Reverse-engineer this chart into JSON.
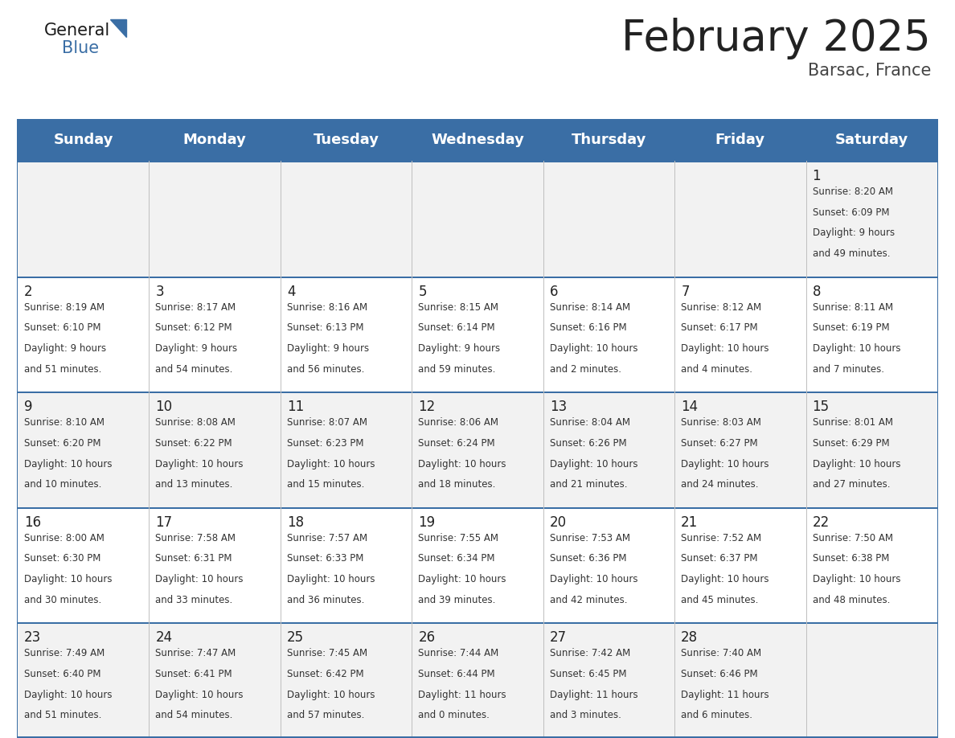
{
  "title": "February 2025",
  "subtitle": "Barsac, France",
  "header_color": "#3a6ea5",
  "header_text_color": "#ffffff",
  "cell_bg_even": "#f2f2f2",
  "cell_bg_odd": "#ffffff",
  "line_color": "#3a6ea5",
  "border_color": "#c0c0c0",
  "days_of_week": [
    "Sunday",
    "Monday",
    "Tuesday",
    "Wednesday",
    "Thursday",
    "Friday",
    "Saturday"
  ],
  "title_fontsize": 38,
  "subtitle_fontsize": 15,
  "header_fontsize": 13,
  "day_num_fontsize": 12,
  "info_fontsize": 8.5,
  "logo_general_fontsize": 15,
  "logo_blue_fontsize": 15,
  "calendar": [
    [
      null,
      null,
      null,
      null,
      null,
      null,
      {
        "day": 1,
        "sunrise": "8:20 AM",
        "sunset": "6:09 PM",
        "daylight_hours": 9,
        "daylight_minutes": 49
      }
    ],
    [
      {
        "day": 2,
        "sunrise": "8:19 AM",
        "sunset": "6:10 PM",
        "daylight_hours": 9,
        "daylight_minutes": 51
      },
      {
        "day": 3,
        "sunrise": "8:17 AM",
        "sunset": "6:12 PM",
        "daylight_hours": 9,
        "daylight_minutes": 54
      },
      {
        "day": 4,
        "sunrise": "8:16 AM",
        "sunset": "6:13 PM",
        "daylight_hours": 9,
        "daylight_minutes": 56
      },
      {
        "day": 5,
        "sunrise": "8:15 AM",
        "sunset": "6:14 PM",
        "daylight_hours": 9,
        "daylight_minutes": 59
      },
      {
        "day": 6,
        "sunrise": "8:14 AM",
        "sunset": "6:16 PM",
        "daylight_hours": 10,
        "daylight_minutes": 2
      },
      {
        "day": 7,
        "sunrise": "8:12 AM",
        "sunset": "6:17 PM",
        "daylight_hours": 10,
        "daylight_minutes": 4
      },
      {
        "day": 8,
        "sunrise": "8:11 AM",
        "sunset": "6:19 PM",
        "daylight_hours": 10,
        "daylight_minutes": 7
      }
    ],
    [
      {
        "day": 9,
        "sunrise": "8:10 AM",
        "sunset": "6:20 PM",
        "daylight_hours": 10,
        "daylight_minutes": 10
      },
      {
        "day": 10,
        "sunrise": "8:08 AM",
        "sunset": "6:22 PM",
        "daylight_hours": 10,
        "daylight_minutes": 13
      },
      {
        "day": 11,
        "sunrise": "8:07 AM",
        "sunset": "6:23 PM",
        "daylight_hours": 10,
        "daylight_minutes": 15
      },
      {
        "day": 12,
        "sunrise": "8:06 AM",
        "sunset": "6:24 PM",
        "daylight_hours": 10,
        "daylight_minutes": 18
      },
      {
        "day": 13,
        "sunrise": "8:04 AM",
        "sunset": "6:26 PM",
        "daylight_hours": 10,
        "daylight_minutes": 21
      },
      {
        "day": 14,
        "sunrise": "8:03 AM",
        "sunset": "6:27 PM",
        "daylight_hours": 10,
        "daylight_minutes": 24
      },
      {
        "day": 15,
        "sunrise": "8:01 AM",
        "sunset": "6:29 PM",
        "daylight_hours": 10,
        "daylight_minutes": 27
      }
    ],
    [
      {
        "day": 16,
        "sunrise": "8:00 AM",
        "sunset": "6:30 PM",
        "daylight_hours": 10,
        "daylight_minutes": 30
      },
      {
        "day": 17,
        "sunrise": "7:58 AM",
        "sunset": "6:31 PM",
        "daylight_hours": 10,
        "daylight_minutes": 33
      },
      {
        "day": 18,
        "sunrise": "7:57 AM",
        "sunset": "6:33 PM",
        "daylight_hours": 10,
        "daylight_minutes": 36
      },
      {
        "day": 19,
        "sunrise": "7:55 AM",
        "sunset": "6:34 PM",
        "daylight_hours": 10,
        "daylight_minutes": 39
      },
      {
        "day": 20,
        "sunrise": "7:53 AM",
        "sunset": "6:36 PM",
        "daylight_hours": 10,
        "daylight_minutes": 42
      },
      {
        "day": 21,
        "sunrise": "7:52 AM",
        "sunset": "6:37 PM",
        "daylight_hours": 10,
        "daylight_minutes": 45
      },
      {
        "day": 22,
        "sunrise": "7:50 AM",
        "sunset": "6:38 PM",
        "daylight_hours": 10,
        "daylight_minutes": 48
      }
    ],
    [
      {
        "day": 23,
        "sunrise": "7:49 AM",
        "sunset": "6:40 PM",
        "daylight_hours": 10,
        "daylight_minutes": 51
      },
      {
        "day": 24,
        "sunrise": "7:47 AM",
        "sunset": "6:41 PM",
        "daylight_hours": 10,
        "daylight_minutes": 54
      },
      {
        "day": 25,
        "sunrise": "7:45 AM",
        "sunset": "6:42 PM",
        "daylight_hours": 10,
        "daylight_minutes": 57
      },
      {
        "day": 26,
        "sunrise": "7:44 AM",
        "sunset": "6:44 PM",
        "daylight_hours": 11,
        "daylight_minutes": 0
      },
      {
        "day": 27,
        "sunrise": "7:42 AM",
        "sunset": "6:45 PM",
        "daylight_hours": 11,
        "daylight_minutes": 3
      },
      {
        "day": 28,
        "sunrise": "7:40 AM",
        "sunset": "6:46 PM",
        "daylight_hours": 11,
        "daylight_minutes": 6
      },
      null
    ]
  ]
}
